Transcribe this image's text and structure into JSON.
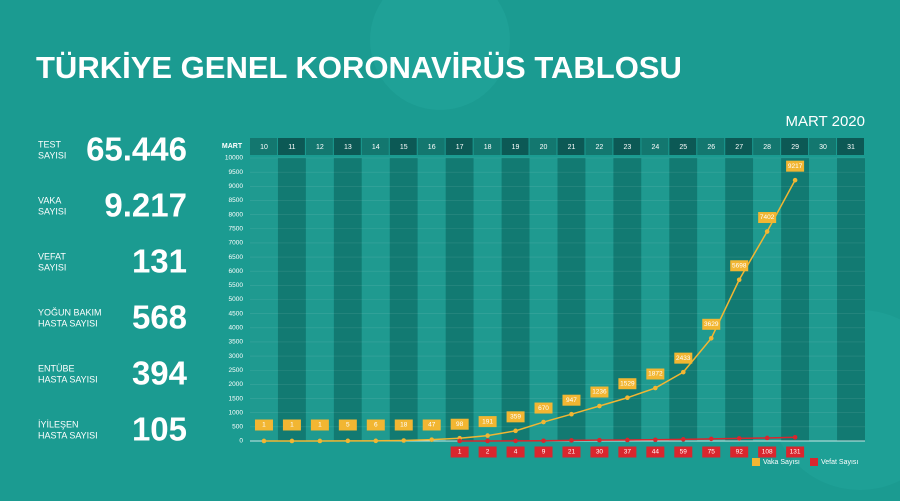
{
  "title": "TÜRKİYE GENEL KORONAVİRÜS TABLOSU",
  "stats": [
    {
      "label": [
        "TEST",
        "SAYISI"
      ],
      "value": "65.446"
    },
    {
      "label": [
        "VAKA",
        "SAYISI"
      ],
      "value": "9.217"
    },
    {
      "label": [
        "VEFAT",
        "SAYISI"
      ],
      "value": "131"
    },
    {
      "label": [
        "YOĞUN BAKIM",
        "HASTA SAYISI"
      ],
      "value": "568"
    },
    {
      "label": [
        "ENTÜBE",
        "HASTA SAYISI"
      ],
      "value": "394"
    },
    {
      "label": [
        "İYİLEŞEN",
        "HASTA SAYISI"
      ],
      "value": "105"
    }
  ],
  "chart_data": {
    "type": "line",
    "subtitle": "MART 2020",
    "header": "MART",
    "categories": [
      "10",
      "11",
      "12",
      "13",
      "14",
      "15",
      "16",
      "17",
      "18",
      "19",
      "20",
      "21",
      "22",
      "23",
      "24",
      "25",
      "26",
      "27",
      "28",
      "29",
      "30",
      "31"
    ],
    "series": [
      {
        "name": "Vaka Sayısı",
        "color": "#f2b632",
        "values": [
          1,
          1,
          1,
          5,
          6,
          18,
          47,
          98,
          191,
          359,
          670,
          947,
          1236,
          1529,
          1872,
          2433,
          3629,
          5698,
          7402,
          9217,
          null,
          null
        ]
      },
      {
        "name": "Vefat Sayısı",
        "color": "#d9262e",
        "values": [
          null,
          null,
          null,
          null,
          null,
          null,
          null,
          1,
          2,
          4,
          9,
          21,
          30,
          37,
          44,
          59,
          75,
          92,
          108,
          131,
          null,
          null
        ]
      }
    ],
    "ylim": [
      0,
      10000
    ],
    "yticks": [
      0,
      500,
      1000,
      1500,
      2000,
      2500,
      3000,
      3500,
      4000,
      4500,
      5000,
      5500,
      6000,
      6500,
      7000,
      7500,
      8000,
      8500,
      9000,
      9500,
      10000
    ],
    "grid": true,
    "legend": "bottom-right"
  }
}
